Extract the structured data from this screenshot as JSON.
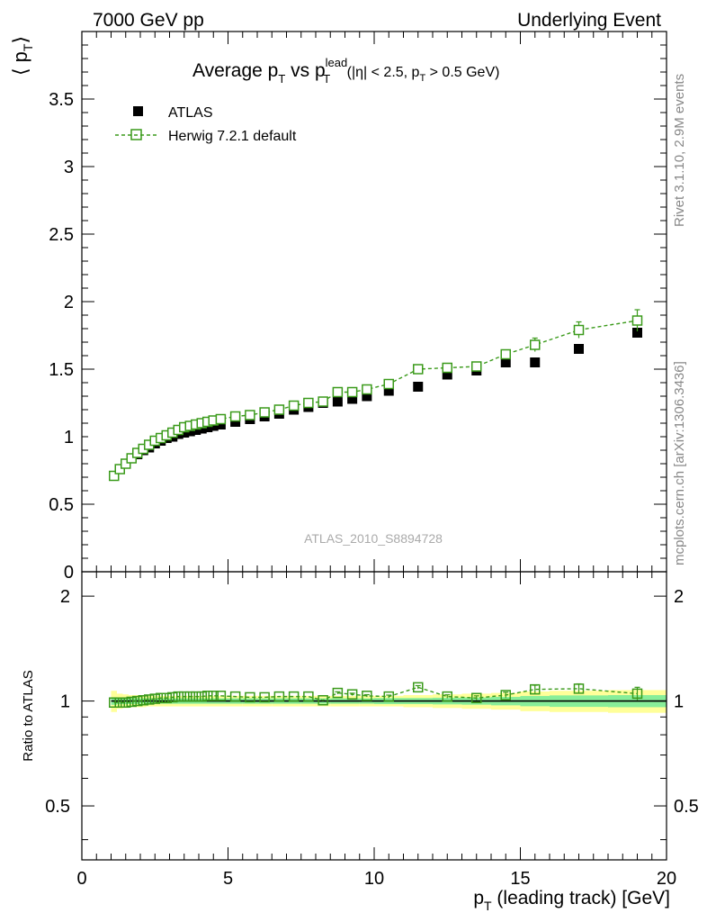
{
  "header": {
    "left": "7000 GeV pp",
    "right": "Underlying Event"
  },
  "side_labels": {
    "rivet": "Rivet 3.1.10,  2.9M events",
    "mcplots": "mcplots.cern.ch [arXiv:1306.3436]"
  },
  "watermark": "ATLAS_2010_S8894728",
  "colors": {
    "data": "#000000",
    "mc": "#3a9a1a",
    "band_outer": "#ffff99",
    "band_inner": "#88ee99"
  },
  "chart_data": [
    {
      "type": "scatter",
      "panel": "main",
      "title": "Average p_T vs p_T^lead (|η| < 2.5, p_T > 0.5 GeV)",
      "title_parts": {
        "main": "Average p",
        "sub1": "T",
        "vs": " vs p",
        "sup": "lead",
        "sub2": "T",
        "cut_a": " (|η| < 2.5, p",
        "cut_sub": "T",
        "cut_b": " > 0.5 GeV)"
      },
      "ylabel": "⟨ p_T ⟩",
      "ylabel_parts": {
        "open": "⟨ p",
        "sub": "T",
        "close": "⟩"
      },
      "xlim": [
        0,
        20
      ],
      "ylim": [
        0,
        4
      ],
      "yticks": [
        "0",
        "0.5",
        "1",
        "1.5",
        "2",
        "2.5",
        "3",
        "3.5"
      ],
      "yticks_values": [
        0,
        0.5,
        1,
        1.5,
        2,
        2.5,
        3,
        3.5
      ],
      "legend_position": "top-left",
      "series": [
        {
          "name": "ATLAS",
          "style": "filled-square",
          "x": [
            1.1,
            1.3,
            1.5,
            1.7,
            1.9,
            2.1,
            2.3,
            2.5,
            2.7,
            2.9,
            3.1,
            3.3,
            3.5,
            3.7,
            3.9,
            4.1,
            4.3,
            4.5,
            4.75,
            5.25,
            5.75,
            6.25,
            6.75,
            7.25,
            7.75,
            8.25,
            8.75,
            9.25,
            9.75,
            10.5,
            11.5,
            12.5,
            13.5,
            14.5,
            15.5,
            17,
            19
          ],
          "y": [
            0.71,
            0.76,
            0.8,
            0.84,
            0.87,
            0.9,
            0.92,
            0.95,
            0.97,
            0.99,
            1.0,
            1.02,
            1.03,
            1.04,
            1.05,
            1.06,
            1.07,
            1.08,
            1.09,
            1.11,
            1.13,
            1.15,
            1.17,
            1.2,
            1.22,
            1.25,
            1.26,
            1.28,
            1.3,
            1.34,
            1.37,
            1.46,
            1.49,
            1.55,
            1.55,
            1.65,
            1.77
          ]
        },
        {
          "name": "Herwig 7.2.1 default",
          "style": "open-square-dashed",
          "x": [
            1.1,
            1.3,
            1.5,
            1.7,
            1.9,
            2.1,
            2.3,
            2.5,
            2.7,
            2.9,
            3.1,
            3.3,
            3.5,
            3.7,
            3.9,
            4.1,
            4.3,
            4.5,
            4.75,
            5.25,
            5.75,
            6.25,
            6.75,
            7.25,
            7.75,
            8.25,
            8.75,
            9.25,
            9.75,
            10.5,
            11.5,
            12.5,
            13.5,
            14.5,
            15.5,
            17,
            19
          ],
          "y": [
            0.71,
            0.76,
            0.8,
            0.84,
            0.88,
            0.91,
            0.94,
            0.97,
            0.99,
            1.01,
            1.03,
            1.05,
            1.07,
            1.08,
            1.09,
            1.1,
            1.11,
            1.12,
            1.13,
            1.15,
            1.16,
            1.18,
            1.2,
            1.23,
            1.25,
            1.26,
            1.33,
            1.33,
            1.35,
            1.39,
            1.5,
            1.51,
            1.52,
            1.61,
            1.68,
            1.79,
            1.86
          ],
          "yerr": [
            0.005,
            0.005,
            0.005,
            0.005,
            0.005,
            0.005,
            0.005,
            0.005,
            0.005,
            0.005,
            0.005,
            0.005,
            0.005,
            0.005,
            0.005,
            0.005,
            0.005,
            0.005,
            0.005,
            0.005,
            0.005,
            0.005,
            0.005,
            0.005,
            0.005,
            0.005,
            0.01,
            0.01,
            0.01,
            0.01,
            0.015,
            0.015,
            0.02,
            0.03,
            0.05,
            0.06,
            0.08
          ]
        }
      ]
    },
    {
      "type": "scatter",
      "panel": "ratio",
      "ylabel": "Ratio to ATLAS",
      "xlabel": "p_T (leading track) [GeV]",
      "xlabel_parts": {
        "main": "p",
        "sub": "T",
        "rest": " (leading track) [GeV]"
      },
      "xlim": [
        0,
        20
      ],
      "ylim": [
        0.35,
        2.35
      ],
      "log_y": true,
      "xticks": [
        "0",
        "5",
        "10",
        "15",
        "20"
      ],
      "xticks_values": [
        0,
        5,
        10,
        15,
        20
      ],
      "yticks": [
        "0.5",
        "1",
        "2"
      ],
      "yticks_values": [
        0.5,
        1,
        2
      ],
      "band_bins": [
        {
          "x0": 1.0,
          "x1": 1.2,
          "outer": 0.07,
          "inner": 0.025
        },
        {
          "x0": 1.2,
          "x1": 1.4,
          "outer": 0.05,
          "inner": 0.02
        },
        {
          "x0": 1.4,
          "x1": 1.6,
          "outer": 0.045,
          "inner": 0.02
        },
        {
          "x0": 1.6,
          "x1": 1.8,
          "outer": 0.04,
          "inner": 0.02
        },
        {
          "x0": 1.8,
          "x1": 2.0,
          "outer": 0.04,
          "inner": 0.02
        },
        {
          "x0": 2.0,
          "x1": 2.2,
          "outer": 0.04,
          "inner": 0.018
        },
        {
          "x0": 2.2,
          "x1": 2.4,
          "outer": 0.035,
          "inner": 0.018
        },
        {
          "x0": 2.4,
          "x1": 2.6,
          "outer": 0.035,
          "inner": 0.018
        },
        {
          "x0": 2.6,
          "x1": 2.8,
          "outer": 0.035,
          "inner": 0.018
        },
        {
          "x0": 2.8,
          "x1": 3.0,
          "outer": 0.035,
          "inner": 0.018
        },
        {
          "x0": 3.0,
          "x1": 3.2,
          "outer": 0.035,
          "inner": 0.018
        },
        {
          "x0": 3.2,
          "x1": 3.4,
          "outer": 0.035,
          "inner": 0.018
        },
        {
          "x0": 3.4,
          "x1": 3.6,
          "outer": 0.035,
          "inner": 0.018
        },
        {
          "x0": 3.6,
          "x1": 3.8,
          "outer": 0.035,
          "inner": 0.018
        },
        {
          "x0": 3.8,
          "x1": 4.0,
          "outer": 0.035,
          "inner": 0.018
        },
        {
          "x0": 4.0,
          "x1": 4.2,
          "outer": 0.035,
          "inner": 0.018
        },
        {
          "x0": 4.2,
          "x1": 4.4,
          "outer": 0.035,
          "inner": 0.018
        },
        {
          "x0": 4.4,
          "x1": 4.6,
          "outer": 0.035,
          "inner": 0.018
        },
        {
          "x0": 4.6,
          "x1": 5.0,
          "outer": 0.035,
          "inner": 0.018
        },
        {
          "x0": 5.0,
          "x1": 5.5,
          "outer": 0.035,
          "inner": 0.018
        },
        {
          "x0": 5.5,
          "x1": 6.0,
          "outer": 0.035,
          "inner": 0.018
        },
        {
          "x0": 6.0,
          "x1": 6.5,
          "outer": 0.035,
          "inner": 0.018
        },
        {
          "x0": 6.5,
          "x1": 7.0,
          "outer": 0.035,
          "inner": 0.018
        },
        {
          "x0": 7.0,
          "x1": 7.5,
          "outer": 0.035,
          "inner": 0.018
        },
        {
          "x0": 7.5,
          "x1": 8.0,
          "outer": 0.035,
          "inner": 0.018
        },
        {
          "x0": 8.0,
          "x1": 8.5,
          "outer": 0.035,
          "inner": 0.018
        },
        {
          "x0": 8.5,
          "x1": 9.0,
          "outer": 0.035,
          "inner": 0.018
        },
        {
          "x0": 9.0,
          "x1": 9.5,
          "outer": 0.035,
          "inner": 0.018
        },
        {
          "x0": 9.5,
          "x1": 10.0,
          "outer": 0.035,
          "inner": 0.018
        },
        {
          "x0": 10.0,
          "x1": 11.0,
          "outer": 0.035,
          "inner": 0.02
        },
        {
          "x0": 11.0,
          "x1": 12.0,
          "outer": 0.04,
          "inner": 0.02
        },
        {
          "x0": 12.0,
          "x1": 13.0,
          "outer": 0.045,
          "inner": 0.022
        },
        {
          "x0": 13.0,
          "x1": 14.0,
          "outer": 0.05,
          "inner": 0.024
        },
        {
          "x0": 14.0,
          "x1": 15.0,
          "outer": 0.055,
          "inner": 0.028
        },
        {
          "x0": 15.0,
          "x1": 16.0,
          "outer": 0.065,
          "inner": 0.034
        },
        {
          "x0": 16.0,
          "x1": 18.0,
          "outer": 0.07,
          "inner": 0.038
        },
        {
          "x0": 18.0,
          "x1": 20.0,
          "outer": 0.075,
          "inner": 0.04
        }
      ],
      "ratio": {
        "name": "Herwig 7.2.1 default",
        "x": [
          1.1,
          1.3,
          1.5,
          1.7,
          1.9,
          2.1,
          2.3,
          2.5,
          2.7,
          2.9,
          3.1,
          3.3,
          3.5,
          3.7,
          3.9,
          4.1,
          4.3,
          4.5,
          4.75,
          5.25,
          5.75,
          6.25,
          6.75,
          7.25,
          7.75,
          8.25,
          8.75,
          9.25,
          9.75,
          10.5,
          11.5,
          12.5,
          13.5,
          14.5,
          15.5,
          17,
          19
        ],
        "y": [
          0.99,
          0.99,
          0.99,
          0.995,
          1.0,
          1.005,
          1.01,
          1.015,
          1.02,
          1.02,
          1.025,
          1.03,
          1.03,
          1.03,
          1.03,
          1.03,
          1.035,
          1.035,
          1.035,
          1.03,
          1.025,
          1.025,
          1.03,
          1.03,
          1.03,
          1.005,
          1.055,
          1.045,
          1.035,
          1.03,
          1.095,
          1.03,
          1.02,
          1.04,
          1.08,
          1.085,
          1.05
        ],
        "yerr": [
          0.005,
          0.005,
          0.005,
          0.005,
          0.005,
          0.005,
          0.005,
          0.005,
          0.005,
          0.005,
          0.005,
          0.005,
          0.005,
          0.005,
          0.005,
          0.005,
          0.005,
          0.005,
          0.005,
          0.005,
          0.005,
          0.005,
          0.005,
          0.005,
          0.005,
          0.005,
          0.008,
          0.008,
          0.008,
          0.01,
          0.012,
          0.012,
          0.015,
          0.02,
          0.03,
          0.035,
          0.045
        ]
      }
    }
  ]
}
